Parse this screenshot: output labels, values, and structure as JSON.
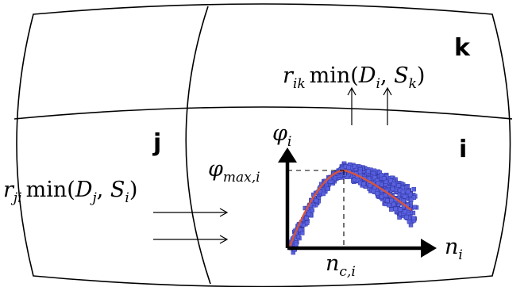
{
  "regions": {
    "k": "k",
    "j": "j",
    "i": "i"
  },
  "flows": {
    "out_to_k": {
      "r": "r",
      "r_sub": "ik",
      "fn": "min(",
      "a": "D",
      "a_sub": "i",
      "comma": ", ",
      "b": "S",
      "b_sub": "k",
      "close": ")"
    },
    "in_from_j": {
      "r": "r",
      "r_sub": "ji",
      "fn": "min(",
      "a": "D",
      "a_sub": "j",
      "comma": ", ",
      "b": "S",
      "b_sub": "i",
      "close": ")"
    }
  },
  "plot": {
    "y_axis": {
      "sym": "φ",
      "sub": "i"
    },
    "x_axis": {
      "sym": "n",
      "sub": "i"
    },
    "y_marker": {
      "sym": "φ",
      "sub": "max,i"
    },
    "x_marker": {
      "sym": "n",
      "sub": "c,i"
    }
  },
  "colors": {
    "scatter": "#5a62e0",
    "fit_curve": "#d9533a",
    "lines": "#000000"
  }
}
